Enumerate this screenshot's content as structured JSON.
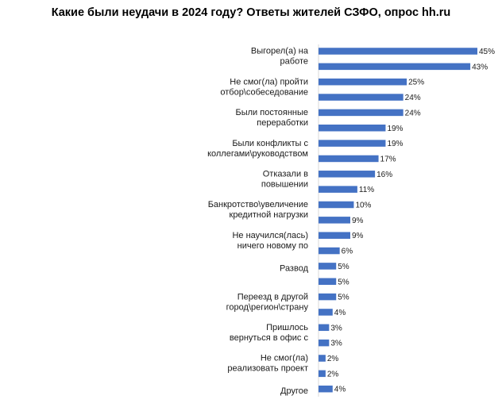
{
  "chart_data": {
    "type": "bar",
    "orientation": "horizontal",
    "title": "Какие были неудачи в 2024 году? Ответы жителей СЗФО, опрос hh.ru",
    "value_suffix": "%",
    "bar_color": "#4472C4",
    "xlim": [
      0,
      45
    ],
    "grid": false,
    "legend": "none",
    "rows": [
      {
        "label_lines": [
          "Выгорел(а) на",
          "работе"
        ],
        "value": 45
      },
      {
        "label_lines": [],
        "value": 43
      },
      {
        "label_lines": [
          "Не смог(ла) пройти",
          "отбор\\собеседование"
        ],
        "value": 25
      },
      {
        "label_lines": [],
        "value": 24
      },
      {
        "label_lines": [
          "Были постоянные",
          "переработки"
        ],
        "value": 24
      },
      {
        "label_lines": [],
        "value": 19
      },
      {
        "label_lines": [
          "Были конфликты с",
          "коллегами\\руководством"
        ],
        "value": 19
      },
      {
        "label_lines": [],
        "value": 17
      },
      {
        "label_lines": [
          "Отказали в",
          "повышении"
        ],
        "value": 16
      },
      {
        "label_lines": [],
        "value": 11
      },
      {
        "label_lines": [
          "Банкротство\\увеличение",
          "кредитной нагрузки"
        ],
        "value": 10
      },
      {
        "label_lines": [],
        "value": 9
      },
      {
        "label_lines": [
          "Не научился(лась)",
          "ничего новому по"
        ],
        "value": 9
      },
      {
        "label_lines": [],
        "value": 6
      },
      {
        "label_lines": [
          "Развод"
        ],
        "value": 5
      },
      {
        "label_lines": [],
        "value": 5
      },
      {
        "label_lines": [
          "Переезд в другой",
          "город\\регион\\страну"
        ],
        "value": 5
      },
      {
        "label_lines": [],
        "value": 4
      },
      {
        "label_lines": [
          "Пришлось",
          "вернуться в офис с"
        ],
        "value": 3
      },
      {
        "label_lines": [],
        "value": 3
      },
      {
        "label_lines": [
          "Не смог(ла)",
          "реализовать проект"
        ],
        "value": 2
      },
      {
        "label_lines": [],
        "value": 2
      },
      {
        "label_lines": [
          "Другое"
        ],
        "value": 4
      }
    ]
  }
}
